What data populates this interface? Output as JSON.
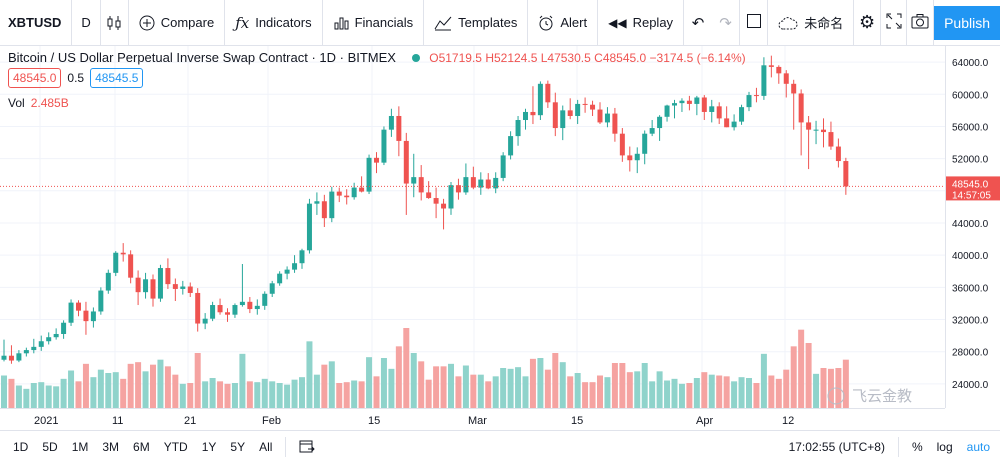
{
  "toolbar": {
    "symbol": "XBTUSD",
    "interval": "D",
    "compare": "Compare",
    "indicators": "Indicators",
    "financials": "Financials",
    "templates": "Templates",
    "alert": "Alert",
    "replay": "Replay",
    "layout_name": "未命名",
    "publish": "Publish"
  },
  "legend": {
    "title": "Bitcoin / US Dollar Perpetual Inverse Swap Contract · 1D · BITMEX",
    "o_label": "O",
    "o": "51719.5",
    "h_label": "H",
    "h": "52124.5",
    "l_label": "L",
    "l": "47530.5",
    "c_label": "C",
    "c": "48545.0",
    "change": "−3174.5 (−6.14%)",
    "sell_price": "48545.0",
    "spread": "0.5",
    "buy_price": "48545.5",
    "vol_label": "Vol",
    "vol_value": "2.485B"
  },
  "price_axis": {
    "ticks": [
      "64000.0",
      "60000.0",
      "56000.0",
      "52000.0",
      "44000.0",
      "40000.0",
      "36000.0",
      "32000.0",
      "28000.0",
      "24000.0"
    ],
    "last_price": "48545.0",
    "countdown": "14:57:05"
  },
  "time_axis": {
    "ticks": [
      "2021",
      "11",
      "21",
      "Feb",
      "15",
      "Mar",
      "15",
      "Apr",
      "12"
    ]
  },
  "bottom_bar": {
    "ranges": [
      "1D",
      "5D",
      "1M",
      "3M",
      "6M",
      "YTD",
      "1Y",
      "5Y",
      "All"
    ],
    "clock": "17:02:55 (UTC+8)",
    "percent": "%",
    "log": "log",
    "auto": "auto"
  },
  "watermark": "飞云金教",
  "colors": {
    "up": "#26a69a",
    "down": "#ef5350",
    "accent": "#2196f3",
    "vol_up": "#8fd3cb",
    "vol_down": "#f5a3a1"
  },
  "chart_data": {
    "type": "candlestick",
    "ylim": [
      21000,
      66000
    ],
    "series": [
      {
        "o": 27000,
        "h": 29500,
        "l": 26800,
        "c": 27500
      },
      {
        "o": 27500,
        "h": 28800,
        "l": 26500,
        "c": 26900
      },
      {
        "o": 26900,
        "h": 28200,
        "l": 26700,
        "c": 27800
      },
      {
        "o": 27800,
        "h": 28500,
        "l": 27400,
        "c": 28200
      },
      {
        "o": 28200,
        "h": 29600,
        "l": 27800,
        "c": 28600
      },
      {
        "o": 28600,
        "h": 30000,
        "l": 28100,
        "c": 29300
      },
      {
        "o": 29300,
        "h": 30400,
        "l": 28900,
        "c": 29800
      },
      {
        "o": 29800,
        "h": 30900,
        "l": 29500,
        "c": 30200
      },
      {
        "o": 30200,
        "h": 31900,
        "l": 29600,
        "c": 31600
      },
      {
        "o": 31600,
        "h": 34500,
        "l": 31200,
        "c": 34100
      },
      {
        "o": 34100,
        "h": 34400,
        "l": 32400,
        "c": 33100
      },
      {
        "o": 33100,
        "h": 34200,
        "l": 30100,
        "c": 31800
      },
      {
        "o": 31800,
        "h": 33500,
        "l": 31000,
        "c": 33000
      },
      {
        "o": 33000,
        "h": 36000,
        "l": 32600,
        "c": 35600
      },
      {
        "o": 35600,
        "h": 38200,
        "l": 35200,
        "c": 37800
      },
      {
        "o": 37800,
        "h": 40500,
        "l": 37400,
        "c": 40300
      },
      {
        "o": 40300,
        "h": 41500,
        "l": 39200,
        "c": 40100
      },
      {
        "o": 40100,
        "h": 40600,
        "l": 36500,
        "c": 37200
      },
      {
        "o": 37200,
        "h": 38100,
        "l": 33800,
        "c": 35400
      },
      {
        "o": 35400,
        "h": 37800,
        "l": 34600,
        "c": 37000
      },
      {
        "o": 37000,
        "h": 37600,
        "l": 33600,
        "c": 34600
      },
      {
        "o": 34600,
        "h": 38800,
        "l": 34200,
        "c": 38400
      },
      {
        "o": 38400,
        "h": 39600,
        "l": 35800,
        "c": 36400
      },
      {
        "o": 36400,
        "h": 37100,
        "l": 34300,
        "c": 35800
      },
      {
        "o": 35800,
        "h": 36800,
        "l": 35100,
        "c": 36100
      },
      {
        "o": 36100,
        "h": 36600,
        "l": 34800,
        "c": 35300
      },
      {
        "o": 35300,
        "h": 35900,
        "l": 30500,
        "c": 31500
      },
      {
        "o": 31500,
        "h": 32800,
        "l": 30800,
        "c": 32100
      },
      {
        "o": 32100,
        "h": 34200,
        "l": 31800,
        "c": 33800
      },
      {
        "o": 33800,
        "h": 34600,
        "l": 32600,
        "c": 32900
      },
      {
        "o": 32900,
        "h": 33400,
        "l": 31700,
        "c": 32600
      },
      {
        "o": 32600,
        "h": 34000,
        "l": 32200,
        "c": 33800
      },
      {
        "o": 33800,
        "h": 38900,
        "l": 33600,
        "c": 34200
      },
      {
        "o": 34200,
        "h": 34800,
        "l": 32800,
        "c": 33300
      },
      {
        "o": 33300,
        "h": 34500,
        "l": 32600,
        "c": 33700
      },
      {
        "o": 33700,
        "h": 35500,
        "l": 33200,
        "c": 35200
      },
      {
        "o": 35200,
        "h": 36800,
        "l": 34800,
        "c": 36500
      },
      {
        "o": 36500,
        "h": 38000,
        "l": 36200,
        "c": 37700
      },
      {
        "o": 37700,
        "h": 38600,
        "l": 37000,
        "c": 38200
      },
      {
        "o": 38200,
        "h": 40000,
        "l": 37800,
        "c": 39000
      },
      {
        "o": 39000,
        "h": 40800,
        "l": 38300,
        "c": 40600
      },
      {
        "o": 40600,
        "h": 47000,
        "l": 40200,
        "c": 46400
      },
      {
        "o": 46400,
        "h": 47800,
        "l": 45000,
        "c": 46700
      },
      {
        "o": 46700,
        "h": 47500,
        "l": 43500,
        "c": 44600
      },
      {
        "o": 44600,
        "h": 48500,
        "l": 44100,
        "c": 47900
      },
      {
        "o": 47900,
        "h": 48400,
        "l": 46600,
        "c": 47400
      },
      {
        "o": 47400,
        "h": 48200,
        "l": 46300,
        "c": 47200
      },
      {
        "o": 47200,
        "h": 49000,
        "l": 46900,
        "c": 48400
      },
      {
        "o": 48400,
        "h": 49800,
        "l": 47800,
        "c": 47900
      },
      {
        "o": 47900,
        "h": 52500,
        "l": 47600,
        "c": 52100
      },
      {
        "o": 52100,
        "h": 52800,
        "l": 50200,
        "c": 51500
      },
      {
        "o": 51500,
        "h": 56000,
        "l": 51200,
        "c": 55600
      },
      {
        "o": 55600,
        "h": 58200,
        "l": 54700,
        "c": 57300
      },
      {
        "o": 57300,
        "h": 58500,
        "l": 52300,
        "c": 54200
      },
      {
        "o": 54200,
        "h": 55200,
        "l": 45000,
        "c": 48900
      },
      {
        "o": 48900,
        "h": 52600,
        "l": 47200,
        "c": 49700
      },
      {
        "o": 49700,
        "h": 51200,
        "l": 46800,
        "c": 47800
      },
      {
        "o": 47800,
        "h": 49200,
        "l": 47000,
        "c": 47100
      },
      {
        "o": 47100,
        "h": 48400,
        "l": 44600,
        "c": 46400
      },
      {
        "o": 46400,
        "h": 47000,
        "l": 43200,
        "c": 45800
      },
      {
        "o": 45800,
        "h": 49100,
        "l": 45000,
        "c": 48700
      },
      {
        "o": 48700,
        "h": 49500,
        "l": 46900,
        "c": 47800
      },
      {
        "o": 47800,
        "h": 51400,
        "l": 47500,
        "c": 49700
      },
      {
        "o": 49700,
        "h": 51000,
        "l": 48200,
        "c": 48400
      },
      {
        "o": 48400,
        "h": 50300,
        "l": 47500,
        "c": 49400
      },
      {
        "o": 49400,
        "h": 50200,
        "l": 48200,
        "c": 48300
      },
      {
        "o": 48300,
        "h": 50300,
        "l": 47700,
        "c": 49600
      },
      {
        "o": 49600,
        "h": 52800,
        "l": 49200,
        "c": 52400
      },
      {
        "o": 52400,
        "h": 55400,
        "l": 51900,
        "c": 54800
      },
      {
        "o": 54800,
        "h": 57300,
        "l": 53600,
        "c": 56800
      },
      {
        "o": 56800,
        "h": 58200,
        "l": 55600,
        "c": 57800
      },
      {
        "o": 57800,
        "h": 61000,
        "l": 56300,
        "c": 57400
      },
      {
        "o": 57400,
        "h": 61600,
        "l": 56800,
        "c": 61300
      },
      {
        "o": 61300,
        "h": 61700,
        "l": 58300,
        "c": 59000
      },
      {
        "o": 59000,
        "h": 60200,
        "l": 54800,
        "c": 55800
      },
      {
        "o": 55800,
        "h": 58600,
        "l": 54300,
        "c": 58000
      },
      {
        "o": 58000,
        "h": 59500,
        "l": 56900,
        "c": 57300
      },
      {
        "o": 57300,
        "h": 59300,
        "l": 56300,
        "c": 58800
      },
      {
        "o": 58800,
        "h": 59600,
        "l": 57700,
        "c": 58700
      },
      {
        "o": 58700,
        "h": 59200,
        "l": 57300,
        "c": 58100
      },
      {
        "o": 58100,
        "h": 59000,
        "l": 56300,
        "c": 56500
      },
      {
        "o": 56500,
        "h": 58400,
        "l": 55900,
        "c": 57600
      },
      {
        "o": 57600,
        "h": 58300,
        "l": 54100,
        "c": 55100
      },
      {
        "o": 55100,
        "h": 55800,
        "l": 51600,
        "c": 52400
      },
      {
        "o": 52400,
        "h": 53500,
        "l": 50400,
        "c": 51800
      },
      {
        "o": 51800,
        "h": 53400,
        "l": 50200,
        "c": 52600
      },
      {
        "o": 52600,
        "h": 55500,
        "l": 51300,
        "c": 55100
      },
      {
        "o": 55100,
        "h": 56800,
        "l": 54800,
        "c": 55800
      },
      {
        "o": 55800,
        "h": 57400,
        "l": 54200,
        "c": 57200
      },
      {
        "o": 57200,
        "h": 58700,
        "l": 56600,
        "c": 58600
      },
      {
        "o": 58600,
        "h": 59300,
        "l": 57000,
        "c": 58900
      },
      {
        "o": 58900,
        "h": 59500,
        "l": 57800,
        "c": 59200
      },
      {
        "o": 59200,
        "h": 59800,
        "l": 58000,
        "c": 58800
      },
      {
        "o": 58800,
        "h": 59800,
        "l": 57400,
        "c": 59600
      },
      {
        "o": 59600,
        "h": 59900,
        "l": 56800,
        "c": 57800
      },
      {
        "o": 57800,
        "h": 59300,
        "l": 56500,
        "c": 58500
      },
      {
        "o": 58500,
        "h": 59000,
        "l": 56300,
        "c": 57000
      },
      {
        "o": 57000,
        "h": 58500,
        "l": 55900,
        "c": 55900
      },
      {
        "o": 55900,
        "h": 57500,
        "l": 55500,
        "c": 56600
      },
      {
        "o": 56600,
        "h": 58700,
        "l": 56200,
        "c": 58400
      },
      {
        "o": 58400,
        "h": 60300,
        "l": 57900,
        "c": 59900
      },
      {
        "o": 59900,
        "h": 60800,
        "l": 59000,
        "c": 59800
      },
      {
        "o": 59800,
        "h": 64600,
        "l": 59300,
        "c": 63600
      },
      {
        "o": 63600,
        "h": 64800,
        "l": 62100,
        "c": 63400
      },
      {
        "o": 63400,
        "h": 63600,
        "l": 61300,
        "c": 62600
      },
      {
        "o": 62600,
        "h": 63000,
        "l": 59600,
        "c": 61300
      },
      {
        "o": 61300,
        "h": 61800,
        "l": 55600,
        "c": 60100
      },
      {
        "o": 60100,
        "h": 60600,
        "l": 52400,
        "c": 56500
      },
      {
        "o": 56500,
        "h": 57300,
        "l": 50700,
        "c": 55600
      },
      {
        "o": 55600,
        "h": 56700,
        "l": 53800,
        "c": 55600
      },
      {
        "o": 55600,
        "h": 57000,
        "l": 53400,
        "c": 55300
      },
      {
        "o": 55300,
        "h": 56600,
        "l": 53100,
        "c": 53500
      },
      {
        "o": 53500,
        "h": 54500,
        "l": 50900,
        "c": 51700
      },
      {
        "o": 51700,
        "h": 52100,
        "l": 47500,
        "c": 48545
      }
    ],
    "volume_up_pattern": "alternating"
  }
}
